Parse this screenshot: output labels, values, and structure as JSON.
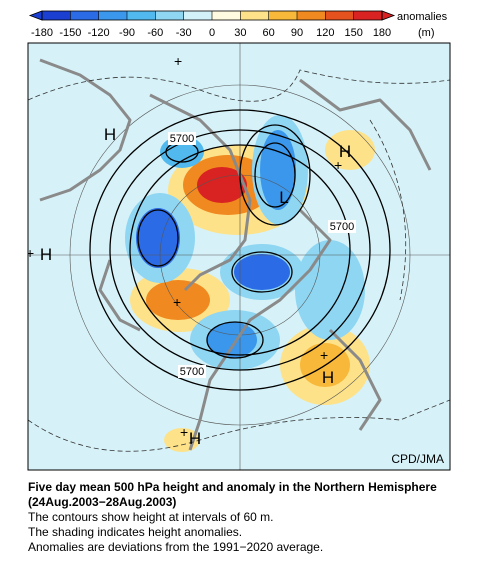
{
  "colorbar": {
    "ticks": [
      -180,
      -150,
      -120,
      -90,
      -60,
      -30,
      0,
      30,
      60,
      90,
      120,
      150,
      180
    ],
    "colors": [
      "#1a3fd1",
      "#2c6be6",
      "#3a97ec",
      "#52b9ee",
      "#8fd6f2",
      "#d2f1f8",
      "#fffbe0",
      "#fde28a",
      "#f8b83a",
      "#f0891f",
      "#e6521d",
      "#d92222"
    ],
    "label": "anomalies",
    "unit": "(m)"
  },
  "map": {
    "labels": [
      "H",
      "H",
      "H",
      "H",
      "H",
      "L",
      "5700",
      "5700",
      "5700"
    ],
    "credit": "CPD/JMA"
  },
  "caption": {
    "title": "Five day mean 500 hPa height and anomaly in the Northern Hemisphere (24Aug.2003−28Aug.2003)",
    "lines": [
      "The contours show height at intervals of 60 m.",
      "The shading indicates height anomalies.",
      "Anomalies are deviations from the 1991−2020 average."
    ]
  }
}
